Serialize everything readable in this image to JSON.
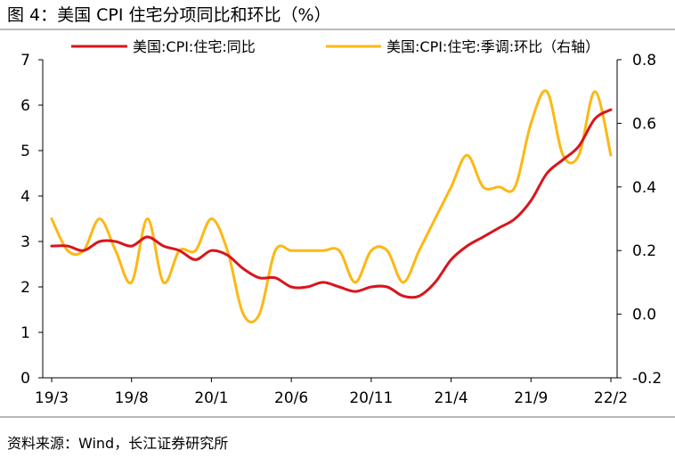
{
  "figure_title": "图 4：美国 CPI 住宅分项同比和环比（%）",
  "source_note": "资料来源：Wind，长江证券研究所",
  "colors": {
    "series_yoy": "#d9151b",
    "series_mom": "#fcb814",
    "axis": "#000000",
    "rule": "#b9b9b9"
  },
  "chart_data": {
    "type": "line",
    "legend_position": "top",
    "grid": false,
    "x": [
      "19/3",
      "19/4",
      "19/5",
      "19/6",
      "19/7",
      "19/8",
      "19/9",
      "19/10",
      "19/11",
      "19/12",
      "20/1",
      "20/2",
      "20/3",
      "20/4",
      "20/5",
      "20/6",
      "20/7",
      "20/8",
      "20/9",
      "20/10",
      "20/11",
      "20/12",
      "21/1",
      "21/2",
      "21/3",
      "21/4",
      "21/5",
      "21/6",
      "21/7",
      "21/8",
      "21/9",
      "21/10",
      "21/11",
      "21/12",
      "22/1",
      "22/2"
    ],
    "x_tick_labels": [
      "19/3",
      "19/8",
      "20/1",
      "20/6",
      "20/11",
      "21/4",
      "21/9",
      "22/2"
    ],
    "y_left": {
      "ticks": [
        "0",
        "1",
        "2",
        "3",
        "4",
        "5",
        "6",
        "7"
      ],
      "lim": [
        0,
        7
      ]
    },
    "y_right": {
      "ticks": [
        "-0.2",
        "0.0",
        "0.2",
        "0.4",
        "0.6",
        "0.8"
      ],
      "lim": [
        -0.2,
        0.8
      ]
    },
    "series": [
      {
        "name": "美国:CPI:住宅:同比",
        "axis": "left",
        "values": [
          2.9,
          2.9,
          2.8,
          3.0,
          3.0,
          2.9,
          3.1,
          2.9,
          2.8,
          2.6,
          2.8,
          2.7,
          2.4,
          2.2,
          2.2,
          2.0,
          2.0,
          2.1,
          2.0,
          1.9,
          2.0,
          2.0,
          1.8,
          1.8,
          2.1,
          2.6,
          2.9,
          3.1,
          3.3,
          3.5,
          3.9,
          4.5,
          4.8,
          5.1,
          5.7,
          5.9
        ]
      },
      {
        "name": "美国:CPI:住宅:季调:环比（右轴）",
        "axis": "right",
        "values": [
          0.3,
          0.2,
          0.2,
          0.3,
          0.2,
          0.1,
          0.3,
          0.1,
          0.2,
          0.2,
          0.3,
          0.2,
          0.0,
          0.0,
          0.2,
          0.2,
          0.2,
          0.2,
          0.2,
          0.1,
          0.2,
          0.2,
          0.1,
          0.2,
          0.3,
          0.4,
          0.5,
          0.4,
          0.4,
          0.4,
          0.6,
          0.7,
          0.5,
          0.5,
          0.7,
          0.5
        ]
      }
    ]
  }
}
